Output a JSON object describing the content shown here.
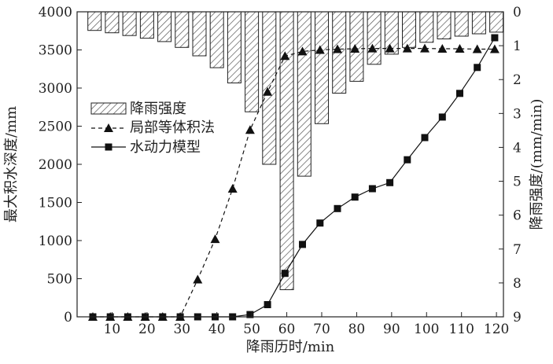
{
  "chart_data": {
    "type": "bar+line",
    "xlabel": "降雨历时/min",
    "ylabel_left": "最大积水深度/mm",
    "ylabel_right": "降雨强度/(mm/min)",
    "x_ticks": [
      10,
      20,
      30,
      40,
      50,
      60,
      70,
      80,
      90,
      100,
      110,
      120
    ],
    "y_left_ticks": [
      0,
      500,
      1000,
      1500,
      2000,
      2500,
      3000,
      3500,
      4000
    ],
    "y_right_ticks": [
      0,
      1,
      2,
      3,
      4,
      5,
      6,
      7,
      8,
      9
    ],
    "xlim": [
      0,
      122
    ],
    "ylim_left": [
      0,
      4000
    ],
    "ylim_right_inverted": [
      0,
      9
    ],
    "legend_position": "upper-left",
    "bar_series": {
      "name": "降雨强度",
      "x": [
        5,
        10,
        15,
        20,
        25,
        30,
        35,
        40,
        45,
        50,
        55,
        60,
        65,
        70,
        75,
        80,
        85,
        90,
        95,
        100,
        105,
        110,
        115,
        120
      ],
      "values": [
        0.55,
        0.62,
        0.7,
        0.78,
        0.88,
        1.05,
        1.3,
        1.65,
        2.1,
        2.95,
        4.5,
        8.2,
        4.85,
        3.3,
        2.4,
        2.05,
        1.55,
        1.25,
        1.05,
        0.9,
        0.8,
        0.72,
        0.65,
        0.6
      ]
    },
    "series": [
      {
        "name": "局部等体积法",
        "marker": "triangle",
        "dash": "dashed",
        "x": [
          4.5,
          9.5,
          14.5,
          19.5,
          24.5,
          29.5,
          34.5,
          39.5,
          44.5,
          49.5,
          54.5,
          59.5,
          64.5,
          69.5,
          74.5,
          79.5,
          84.5,
          89.5,
          94.5,
          99.5,
          104.5,
          109.5,
          114.5,
          119.5
        ],
        "values": [
          0,
          0,
          0,
          0,
          0,
          0,
          490,
          1020,
          1680,
          2450,
          2950,
          3420,
          3480,
          3500,
          3510,
          3515,
          3520,
          3520,
          3520,
          3520,
          3515,
          3515,
          3510,
          3510
        ]
      },
      {
        "name": "水动力模型",
        "marker": "square",
        "dash": "solid",
        "x": [
          4.5,
          9.5,
          14.5,
          19.5,
          24.5,
          29.5,
          34.5,
          39.5,
          44.5,
          49.5,
          54.5,
          59.5,
          64.5,
          69.5,
          74.5,
          79.5,
          84.5,
          89.5,
          94.5,
          99.5,
          104.5,
          109.5,
          114.5,
          119.5
        ],
        "values": [
          0,
          0,
          0,
          0,
          0,
          0,
          0,
          0,
          0,
          30,
          160,
          570,
          950,
          1230,
          1420,
          1570,
          1680,
          1760,
          2060,
          2350,
          2620,
          2930,
          3270,
          3660
        ]
      }
    ],
    "colors": {
      "bar_edge": "#222222",
      "bar_hatch": "#555555",
      "line": "#111111"
    }
  }
}
